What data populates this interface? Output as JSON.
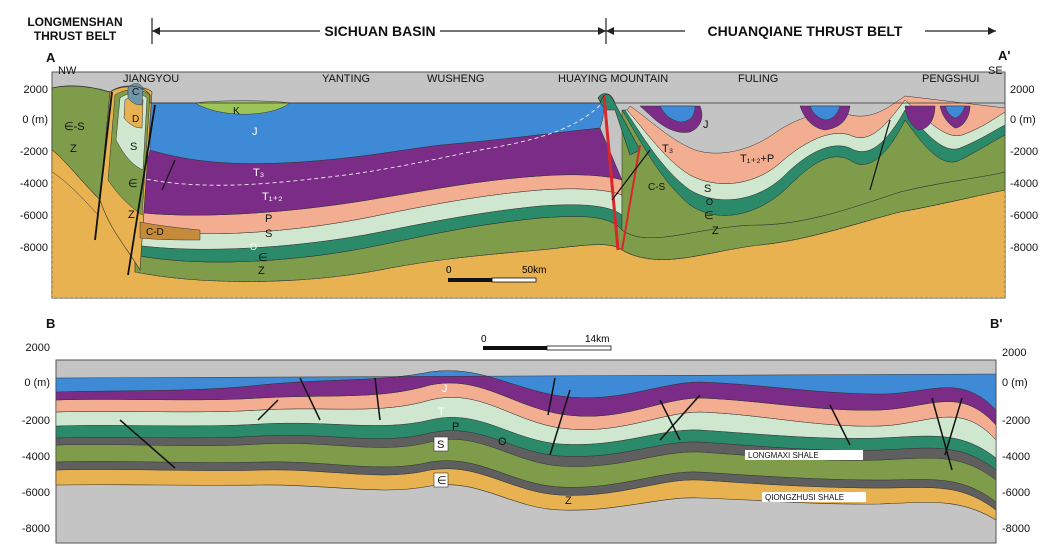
{
  "top_banner": {
    "regions": [
      {
        "label_lines": [
          "LONGMENSHAN",
          "THRUST BELT"
        ]
      },
      {
        "label_lines": [
          "SICHUAN BASIN"
        ]
      },
      {
        "label_lines": [
          "CHUANQIANE THRUST BELT"
        ]
      }
    ]
  },
  "section_a": {
    "label_left": "A",
    "label_right": "A'",
    "direction_left": "NW",
    "direction_right": "SE",
    "places": [
      "JIANGYOU",
      "YANTING",
      "WUSHENG",
      "HUAYING MOUNTAIN",
      "FULING",
      "PENGSHUI"
    ],
    "axis_left": [
      "2000",
      "0 (m)",
      "-2000",
      "-4000",
      "-6000",
      "-8000"
    ],
    "axis_right": [
      "2000",
      "0 (m)",
      "-2000",
      "-4000",
      "-6000",
      "-8000"
    ],
    "scale": {
      "start": "0",
      "end": "50km"
    },
    "unit_labels": {
      "cs": "∈-S",
      "z_left": "Z",
      "c": "C",
      "d": "D",
      "s_left": "S",
      "cam_left": "∈",
      "z_left2": "Z",
      "cd": "C-D",
      "k": "K",
      "j": "J",
      "t3": "T₃",
      "t12": "T₁₊₂",
      "p": "P",
      "s": "S",
      "o": "O",
      "cam": "∈",
      "z": "Z",
      "j_right": "J",
      "t3_right": "T₃",
      "t12p": "T₁₊₂+P",
      "cs_right": "C-S",
      "s_right": "S",
      "o_right": "O",
      "cam_right": "∈",
      "z_right": "Z"
    }
  },
  "section_b": {
    "label_left": "B",
    "label_right": "B'",
    "axis_left": [
      "2000",
      "0 (m)",
      "-2000",
      "-4000",
      "-6000",
      "-8000"
    ],
    "axis_right": [
      "2000",
      "0 (m)",
      "-2000",
      "-4000",
      "-6000",
      "-8000"
    ],
    "scale": {
      "start": "0",
      "end": "14km"
    },
    "unit_labels": {
      "j": "J",
      "t": "T",
      "p": "P",
      "s": "S",
      "o": "O",
      "cam": "∈",
      "z": "Z"
    },
    "shale_labels": [
      "LONGMAXI SHALE",
      "QIONGZHUSI SHALE"
    ]
  },
  "colors": {
    "jurassic": "#3f8ad6",
    "triassic": "#7a2c86",
    "permian": "#f3ae92",
    "silurian": "#cfe7cf",
    "ordovician": "#2a8a6a",
    "cambrian": "#7e9c4a",
    "sinian": "#e7b24f",
    "basement": "#c4c4c4",
    "cretaceous": "#9dc458",
    "shale": "#5f5f5f",
    "fault": "#111111",
    "main_fault": "#d9262c"
  }
}
